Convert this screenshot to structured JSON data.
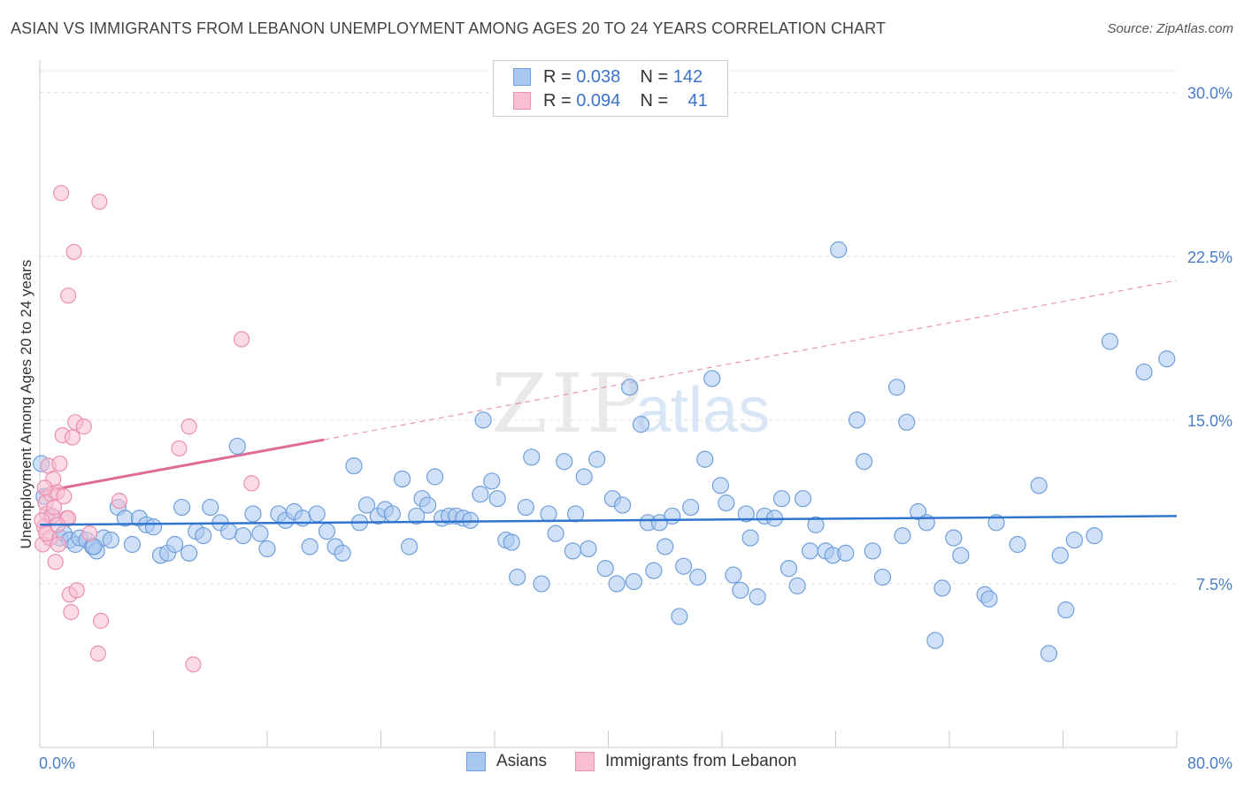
{
  "title": "ASIAN VS IMMIGRANTS FROM LEBANON UNEMPLOYMENT AMONG AGES 20 TO 24 YEARS CORRELATION CHART",
  "source": "Source: ZipAtlas.com",
  "watermark": {
    "zip": "ZIP",
    "atlas": "atlas"
  },
  "colors": {
    "asian_fill": "#a9c8f0",
    "asian_stroke": "#6f9fdc",
    "asian_line": "#2f74cf",
    "leb_fill": "#f8bfd2",
    "leb_stroke": "#ec8fb0",
    "leb_line": "#e06b96",
    "grid": "#dddddd",
    "axis_text": "#4a7cc7"
  },
  "legend_top": {
    "rows": [
      {
        "r_label": "R =",
        "r_value": "0.038",
        "n_label": "N =",
        "n_value": "142"
      },
      {
        "r_label": "R =",
        "r_value": "0.094",
        "n_label": "N =",
        "n_value": "41"
      }
    ]
  },
  "legend_bottom": {
    "asians": "Asians",
    "lebanon": "Immigrants from Lebanon"
  },
  "chart_data": {
    "type": "scatter",
    "title": "ASIAN VS IMMIGRANTS FROM LEBANON UNEMPLOYMENT AMONG AGES 20 TO 24 YEARS CORRELATION CHART",
    "xlabel": "",
    "ylabel": "Unemployment Among Ages 20 to 24 years",
    "xlim": [
      0,
      80
    ],
    "ylim": [
      0,
      31
    ],
    "x_tick_labels": [
      "0.0%",
      "80.0%"
    ],
    "y_ticks": [
      7.5,
      15.0,
      22.5,
      30.0
    ],
    "y_tick_labels": [
      "7.5%",
      "15.0%",
      "22.5%",
      "30.0%"
    ],
    "series": [
      {
        "name": "Asians",
        "trend": {
          "x0": 0,
          "y0": 10.2,
          "x1": 80,
          "y1": 10.6
        },
        "points": [
          [
            0.1,
            13.0
          ],
          [
            0.3,
            11.5
          ],
          [
            0.8,
            10.6
          ],
          [
            1.4,
            9.6
          ],
          [
            1.7,
            9.8
          ],
          [
            2.1,
            9.5
          ],
          [
            2.5,
            9.3
          ],
          [
            2.8,
            9.6
          ],
          [
            3.3,
            9.5
          ],
          [
            3.7,
            9.2
          ],
          [
            4.0,
            9.0
          ],
          [
            4.5,
            9.6
          ],
          [
            5.0,
            9.5
          ],
          [
            5.5,
            11.0
          ],
          [
            6.0,
            10.5
          ],
          [
            6.5,
            9.3
          ],
          [
            7.0,
            10.5
          ],
          [
            7.5,
            10.2
          ],
          [
            8.0,
            10.1
          ],
          [
            8.5,
            8.8
          ],
          [
            9.0,
            8.9
          ],
          [
            9.5,
            9.3
          ],
          [
            10.0,
            11.0
          ],
          [
            10.5,
            8.9
          ],
          [
            11.0,
            9.9
          ],
          [
            11.5,
            9.7
          ],
          [
            12.0,
            11.0
          ],
          [
            12.7,
            10.3
          ],
          [
            13.3,
            9.9
          ],
          [
            13.9,
            13.8
          ],
          [
            14.3,
            9.7
          ],
          [
            15.0,
            10.7
          ],
          [
            15.5,
            9.8
          ],
          [
            16.0,
            9.1
          ],
          [
            16.8,
            10.7
          ],
          [
            17.3,
            10.4
          ],
          [
            17.9,
            10.8
          ],
          [
            18.5,
            10.5
          ],
          [
            19.0,
            9.2
          ],
          [
            19.5,
            10.7
          ],
          [
            20.2,
            9.9
          ],
          [
            20.8,
            9.2
          ],
          [
            21.3,
            8.9
          ],
          [
            22.1,
            12.9
          ],
          [
            22.5,
            10.3
          ],
          [
            23.0,
            11.1
          ],
          [
            23.8,
            10.6
          ],
          [
            24.3,
            10.9
          ],
          [
            24.8,
            10.7
          ],
          [
            25.5,
            12.3
          ],
          [
            26.0,
            9.2
          ],
          [
            26.5,
            10.6
          ],
          [
            26.9,
            11.4
          ],
          [
            27.3,
            11.1
          ],
          [
            27.8,
            12.4
          ],
          [
            28.3,
            10.5
          ],
          [
            28.8,
            10.6
          ],
          [
            29.3,
            10.6
          ],
          [
            29.8,
            10.5
          ],
          [
            30.3,
            10.4
          ],
          [
            31.0,
            11.6
          ],
          [
            31.2,
            15.0
          ],
          [
            31.8,
            12.2
          ],
          [
            32.2,
            11.4
          ],
          [
            32.8,
            9.5
          ],
          [
            33.2,
            9.4
          ],
          [
            33.6,
            7.8
          ],
          [
            34.2,
            11.0
          ],
          [
            34.6,
            13.3
          ],
          [
            35.3,
            7.5
          ],
          [
            35.8,
            10.7
          ],
          [
            36.3,
            9.8
          ],
          [
            36.9,
            13.1
          ],
          [
            37.5,
            9.0
          ],
          [
            37.7,
            10.7
          ],
          [
            38.3,
            12.4
          ],
          [
            38.6,
            9.1
          ],
          [
            39.2,
            13.2
          ],
          [
            39.8,
            8.2
          ],
          [
            40.3,
            11.4
          ],
          [
            40.6,
            7.5
          ],
          [
            41.0,
            11.1
          ],
          [
            41.5,
            16.5
          ],
          [
            41.8,
            7.6
          ],
          [
            42.3,
            14.8
          ],
          [
            42.8,
            10.3
          ],
          [
            43.2,
            8.1
          ],
          [
            43.6,
            10.3
          ],
          [
            44.0,
            9.2
          ],
          [
            44.5,
            10.6
          ],
          [
            45.0,
            6.0
          ],
          [
            45.3,
            8.3
          ],
          [
            45.8,
            11.0
          ],
          [
            46.3,
            7.8
          ],
          [
            46.8,
            13.2
          ],
          [
            47.3,
            16.9
          ],
          [
            47.9,
            12.0
          ],
          [
            48.3,
            11.2
          ],
          [
            48.8,
            7.9
          ],
          [
            49.3,
            7.2
          ],
          [
            49.7,
            10.7
          ],
          [
            50.0,
            9.6
          ],
          [
            50.5,
            6.9
          ],
          [
            51.0,
            10.6
          ],
          [
            51.7,
            10.5
          ],
          [
            52.2,
            11.4
          ],
          [
            52.7,
            8.2
          ],
          [
            53.3,
            7.4
          ],
          [
            53.7,
            11.4
          ],
          [
            54.2,
            9.0
          ],
          [
            54.6,
            10.2
          ],
          [
            55.3,
            9.0
          ],
          [
            55.8,
            8.8
          ],
          [
            56.2,
            22.8
          ],
          [
            56.7,
            8.9
          ],
          [
            57.5,
            15.0
          ],
          [
            58.0,
            13.1
          ],
          [
            58.6,
            9.0
          ],
          [
            59.3,
            7.8
          ],
          [
            60.3,
            16.5
          ],
          [
            60.7,
            9.7
          ],
          [
            61.0,
            14.9
          ],
          [
            61.8,
            10.8
          ],
          [
            62.4,
            10.3
          ],
          [
            63.0,
            4.9
          ],
          [
            63.5,
            7.3
          ],
          [
            64.3,
            9.6
          ],
          [
            64.8,
            8.8
          ],
          [
            66.5,
            7.0
          ],
          [
            66.8,
            6.8
          ],
          [
            67.3,
            10.3
          ],
          [
            68.8,
            9.3
          ],
          [
            70.3,
            12.0
          ],
          [
            71.0,
            4.3
          ],
          [
            71.8,
            8.8
          ],
          [
            72.2,
            6.3
          ],
          [
            72.8,
            9.5
          ],
          [
            74.2,
            9.7
          ],
          [
            75.3,
            18.6
          ],
          [
            77.7,
            17.2
          ],
          [
            79.3,
            17.8
          ],
          [
            3.8,
            9.2
          ]
        ]
      },
      {
        "name": "Immigrants from Lebanon",
        "trend": {
          "x0": 0,
          "y0": 11.7,
          "x1": 20,
          "y1": 14.1
        },
        "trend_extension": {
          "x0": 20,
          "y0": 14.1,
          "x1": 80,
          "y1": 21.4
        },
        "points": [
          [
            0.2,
            9.3
          ],
          [
            0.3,
            10.1
          ],
          [
            0.4,
            11.2
          ],
          [
            0.5,
            10.7
          ],
          [
            0.6,
            12.9
          ],
          [
            0.7,
            9.6
          ],
          [
            0.8,
            11.6
          ],
          [
            0.9,
            10.6
          ],
          [
            1.0,
            11.0
          ],
          [
            1.1,
            8.5
          ],
          [
            1.2,
            11.7
          ],
          [
            1.3,
            9.3
          ],
          [
            1.4,
            13.0
          ],
          [
            1.5,
            25.4
          ],
          [
            1.6,
            14.3
          ],
          [
            1.7,
            11.5
          ],
          [
            1.9,
            10.5
          ],
          [
            2.0,
            20.7
          ],
          [
            2.1,
            7.0
          ],
          [
            2.2,
            6.2
          ],
          [
            2.3,
            14.2
          ],
          [
            2.4,
            22.7
          ],
          [
            2.5,
            14.9
          ],
          [
            2.6,
            7.2
          ],
          [
            2.0,
            10.5
          ],
          [
            3.1,
            14.7
          ],
          [
            3.5,
            9.8
          ],
          [
            4.1,
            4.3
          ],
          [
            4.2,
            25.0
          ],
          [
            4.3,
            5.8
          ],
          [
            5.6,
            11.3
          ],
          [
            9.8,
            13.7
          ],
          [
            10.5,
            14.7
          ],
          [
            10.8,
            3.8
          ],
          [
            14.2,
            18.7
          ],
          [
            14.9,
            12.1
          ],
          [
            0.15,
            10.4
          ],
          [
            0.45,
            9.8
          ],
          [
            0.95,
            12.3
          ],
          [
            1.25,
            10.2
          ],
          [
            0.35,
            11.9
          ]
        ]
      }
    ]
  }
}
